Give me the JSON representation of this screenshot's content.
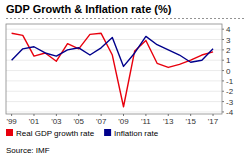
{
  "chart_data": {
    "type": "line",
    "title": "GDP Growth & Inflation rate (%)",
    "source": "Source: IMF",
    "x": [
      1999,
      2000,
      2001,
      2002,
      2003,
      2004,
      2005,
      2006,
      2007,
      2008,
      2009,
      2010,
      2011,
      2012,
      2013,
      2014,
      2015,
      2016,
      2017
    ],
    "series": [
      {
        "name": "Real GDP growth rate",
        "color": "#e8000d",
        "values": [
          3.6,
          3.4,
          1.4,
          1.7,
          0.9,
          2.6,
          2.1,
          3.5,
          3.6,
          1.5,
          -3.5,
          1.9,
          2.9,
          0.7,
          0.3,
          0.6,
          1.0,
          1.5,
          1.8
        ]
      },
      {
        "name": "Inflation rate",
        "color": "#00008b",
        "values": [
          1.0,
          2.1,
          2.3,
          1.7,
          1.4,
          2.0,
          2.2,
          1.5,
          2.2,
          3.2,
          0.4,
          1.7,
          3.3,
          2.5,
          2.0,
          1.5,
          0.8,
          1.0,
          2.1
        ]
      }
    ],
    "xlim": [
      1998.5,
      2017.8
    ],
    "xticks": [
      {
        "value": 1999,
        "label": "'99"
      },
      {
        "value": 2001,
        "label": "'01"
      },
      {
        "value": 2003,
        "label": "'03"
      },
      {
        "value": 2005,
        "label": "'05"
      },
      {
        "value": 2007,
        "label": "'07"
      },
      {
        "value": 2009,
        "label": "'09"
      },
      {
        "value": 2011,
        "label": "'11"
      },
      {
        "value": 2013,
        "label": "'13"
      },
      {
        "value": 2015,
        "label": "'15"
      },
      {
        "value": 2017,
        "label": "'17"
      }
    ],
    "ylim": [
      -4.2,
      4.5
    ],
    "yticks": [
      4,
      3,
      2,
      1,
      0,
      -1,
      -2,
      -3,
      -4
    ],
    "grid": true,
    "legend": "lower left"
  }
}
